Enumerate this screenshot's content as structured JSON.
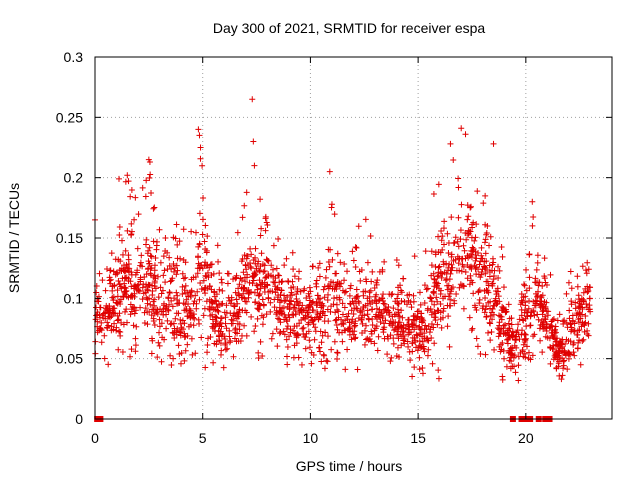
{
  "chart_data": {
    "type": "scatter",
    "title": "Day 300 of 2021, SRMTID for receiver espa",
    "xlabel": "GPS time / hours",
    "ylabel": "SRMTID / TECUs",
    "xlim": [
      0,
      24
    ],
    "ylim": [
      0,
      0.3
    ],
    "x_ticks": [
      0,
      5,
      10,
      15,
      20
    ],
    "x_tick_labels": [
      "0",
      "5",
      "10",
      "15",
      "20"
    ],
    "y_ticks": [
      0,
      0.05,
      0.1,
      0.15,
      0.2,
      0.25,
      0.3
    ],
    "y_tick_labels": [
      "0",
      "0.05",
      "0.1",
      "0.15",
      "0.2",
      "0.25",
      "0.3"
    ],
    "grid": true,
    "marker": "plus",
    "series_color": "#e00000",
    "envelope_hours": [
      0,
      0.5,
      1,
      1.5,
      2,
      2.5,
      3,
      3.5,
      4,
      4.5,
      5,
      5.5,
      6,
      6.5,
      7,
      7.5,
      8,
      8.5,
      9,
      9.5,
      10,
      10.5,
      11,
      11.5,
      12,
      12.5,
      13,
      13.5,
      14,
      14.5,
      15,
      15.5,
      16,
      16.5,
      17,
      17.5,
      18,
      18.5,
      19,
      19.5,
      20,
      20.5,
      21,
      21.5,
      22,
      22.5,
      23
    ],
    "envelope_low": [
      0.05,
      0.04,
      0.04,
      0.05,
      0.05,
      0.05,
      0.04,
      0.04,
      0.03,
      0.04,
      0.04,
      0.04,
      0.03,
      0.04,
      0.05,
      0.05,
      0.05,
      0.05,
      0.04,
      0.04,
      0.04,
      0.04,
      0.04,
      0.04,
      0.04,
      0.04,
      0.04,
      0.04,
      0.03,
      0.03,
      0.03,
      0.02,
      0.03,
      0.05,
      0.05,
      0.05,
      0.05,
      0.04,
      0.03,
      0.03,
      0.03,
      0.04,
      0.04,
      0.03,
      0.02,
      0.04,
      0.05
    ],
    "envelope_high": [
      0.16,
      0.12,
      0.2,
      0.2,
      0.18,
      0.21,
      0.17,
      0.17,
      0.17,
      0.16,
      0.24,
      0.15,
      0.14,
      0.14,
      0.2,
      0.19,
      0.18,
      0.17,
      0.15,
      0.15,
      0.15,
      0.14,
      0.2,
      0.14,
      0.15,
      0.17,
      0.15,
      0.14,
      0.14,
      0.15,
      0.13,
      0.16,
      0.22,
      0.21,
      0.24,
      0.22,
      0.21,
      0.19,
      0.13,
      0.1,
      0.15,
      0.18,
      0.14,
      0.09,
      0.13,
      0.14,
      0.16
    ],
    "spikes": [
      {
        "x": 7.3,
        "y": 0.265
      },
      {
        "x": 7.35,
        "y": 0.23
      },
      {
        "x": 7.4,
        "y": 0.21
      },
      {
        "x": 4.8,
        "y": 0.24
      },
      {
        "x": 4.85,
        "y": 0.235
      },
      {
        "x": 4.9,
        "y": 0.225
      },
      {
        "x": 2.5,
        "y": 0.215
      },
      {
        "x": 2.55,
        "y": 0.213
      },
      {
        "x": 10.9,
        "y": 0.205
      },
      {
        "x": 17.0,
        "y": 0.241
      },
      {
        "x": 17.2,
        "y": 0.236
      },
      {
        "x": 18.5,
        "y": 0.228
      },
      {
        "x": 16.5,
        "y": 0.228
      },
      {
        "x": 1.5,
        "y": 0.202
      },
      {
        "x": 20.3,
        "y": 0.18
      },
      {
        "x": 0.0,
        "y": 0.165
      },
      {
        "x": 11.0,
        "y": 0.178
      }
    ],
    "zero_points_hours": [
      0.1,
      0.25,
      19.4,
      19.8,
      20.0,
      20.2,
      20.6,
      20.9,
      21.1
    ]
  }
}
